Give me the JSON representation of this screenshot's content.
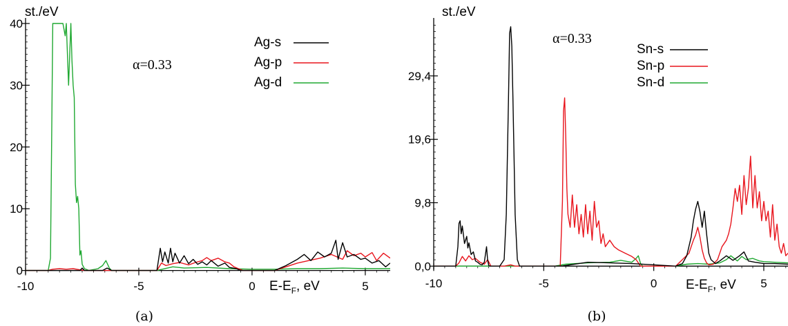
{
  "chart_data": [
    {
      "type": "line",
      "ylabel": "st./eV",
      "xlabel_main": "E-E",
      "xlabel_sub": "F",
      "xlabel_tail": ", eV",
      "annotation": "α=0.33",
      "caption": "(a)",
      "xlim": [
        -10,
        6.1
      ],
      "ylim": [
        -0.6,
        40
      ],
      "xticks": [
        -10,
        -5,
        0,
        5
      ],
      "xtick_labels": [
        "-10",
        "-5",
        "0",
        "5"
      ],
      "yticks": [
        0,
        10,
        20,
        30,
        40
      ],
      "ytick_labels": [
        "0",
        "10",
        "20",
        "30",
        "40"
      ],
      "grid": false,
      "legend_position": "top-right",
      "series": [
        {
          "name": "Ag-s",
          "color": "#000000",
          "x": [
            -10,
            -7.6,
            -7.5,
            -7.4,
            -6.6,
            -6.4,
            -6.2,
            -4.2,
            -4.05,
            -3.95,
            -3.85,
            -3.7,
            -3.6,
            -3.5,
            -3.4,
            -3.2,
            -3.0,
            -2.8,
            -2.6,
            -2.4,
            -2.2,
            -2.0,
            -1.8,
            -1.5,
            -1.2,
            -1.0,
            -0.7,
            -0.5,
            1.0,
            1.5,
            2.0,
            2.3,
            2.6,
            2.9,
            3.2,
            3.5,
            3.7,
            3.8,
            4.0,
            4.2,
            4.5,
            4.8,
            5.0,
            5.3,
            5.6,
            5.9,
            6.1
          ],
          "values": [
            0,
            0,
            0.4,
            0,
            0,
            0.4,
            0,
            0,
            3.6,
            1.4,
            3.0,
            1.2,
            3.6,
            1.4,
            2.8,
            1.2,
            2.4,
            1.1,
            1.8,
            1.0,
            1.4,
            0.9,
            1.6,
            0.7,
            1.2,
            0.5,
            0.3,
            0,
            0,
            0.8,
            1.8,
            2.6,
            1.6,
            3.0,
            2.2,
            2.8,
            4.9,
            1.8,
            4.5,
            2.2,
            2.6,
            1.8,
            2.0,
            1.2,
            1.6,
            0.6,
            1.2
          ]
        },
        {
          "name": "Ag-p",
          "color": "#e8141c",
          "x": [
            -10,
            -9.0,
            -8.8,
            -8.5,
            -8.2,
            -7.9,
            -7.6,
            -7.4,
            -4.2,
            -4.0,
            -3.8,
            -3.5,
            -3.2,
            -2.8,
            -2.5,
            -2.2,
            -2.0,
            -1.8,
            -1.5,
            -1.2,
            -1.0,
            -0.8,
            -0.6,
            -0.4,
            1.0,
            1.5,
            2.0,
            2.5,
            3.0,
            3.5,
            4.0,
            4.2,
            4.5,
            4.8,
            5.0,
            5.3,
            5.5,
            5.8,
            6.1
          ],
          "values": [
            0,
            0,
            0.2,
            0.3,
            0.2,
            0.3,
            0.1,
            0,
            0,
            1.2,
            0.8,
            1.1,
            1.3,
            0.9,
            1.3,
            1.6,
            2.1,
            1.6,
            2.0,
            1.4,
            1.2,
            0.6,
            0.3,
            0,
            0,
            0.6,
            1.2,
            1.6,
            2.0,
            2.6,
            1.8,
            3.2,
            2.4,
            2.8,
            2.2,
            2.9,
            1.6,
            2.8,
            2.0
          ]
        },
        {
          "name": "Ag-d",
          "color": "#1fa831",
          "x": [
            -10,
            -9.0,
            -8.9,
            -8.85,
            -8.8,
            -8.7,
            -8.6,
            -8.5,
            -8.35,
            -8.25,
            -8.2,
            -8.1,
            -8.0,
            -7.95,
            -7.9,
            -7.85,
            -7.8,
            -7.75,
            -7.7,
            -7.65,
            -7.6,
            -7.55,
            -7.5,
            -7.4,
            -7.2,
            -6.8,
            -6.6,
            -6.45,
            -6.3,
            -6.2,
            -4.2,
            -3.5,
            -3.0,
            -2.0,
            -1.0,
            0,
            1.0,
            2.0,
            3.0,
            4.0,
            5.0,
            6.1
          ],
          "values": [
            0,
            0,
            2,
            20,
            40,
            40,
            40,
            40,
            40,
            38,
            40,
            30,
            40,
            34,
            30,
            28,
            14,
            11,
            12,
            10,
            2.5,
            3.2,
            1.0,
            0.3,
            0,
            0.3,
            0.8,
            1.6,
            0.4,
            0,
            0,
            0.6,
            0.4,
            0.5,
            0.3,
            0.2,
            0.2,
            0.3,
            0.3,
            0.4,
            0.3,
            0.3
          ]
        }
      ]
    },
    {
      "type": "line",
      "ylabel": "st./eV",
      "xlabel_main": "E-E",
      "xlabel_sub": "F",
      "xlabel_tail": ", eV",
      "annotation": "α=0.33",
      "caption": "(b)",
      "xlim": [
        -10,
        6.1
      ],
      "ylim": [
        -0.5,
        37.5
      ],
      "xticks": [
        -10,
        -5,
        0,
        5
      ],
      "xtick_labels": [
        "-10",
        "-5",
        "0",
        "5"
      ],
      "yticks": [
        0,
        9.8,
        19.6,
        29.4
      ],
      "ytick_labels": [
        "0,0",
        "9,8",
        "19,6",
        "29,4"
      ],
      "grid": false,
      "legend_position": "top-right",
      "series": [
        {
          "name": "Sn-s",
          "color": "#000000",
          "x": [
            -10,
            -9.0,
            -8.9,
            -8.85,
            -8.8,
            -8.75,
            -8.7,
            -8.6,
            -8.5,
            -8.45,
            -8.4,
            -8.3,
            -8.2,
            -8.1,
            -8.0,
            -7.9,
            -7.8,
            -7.7,
            -7.6,
            -7.55,
            -7.5,
            -7.45,
            -7.4,
            -7.0,
            -6.8,
            -6.7,
            -6.6,
            -6.55,
            -6.5,
            -6.45,
            -6.4,
            -6.3,
            -6.2,
            -6.1,
            -4.2,
            -3.0,
            -2.0,
            -1.0,
            1.0,
            1.3,
            1.5,
            1.7,
            1.8,
            1.9,
            2.0,
            2.1,
            2.2,
            2.3,
            2.4,
            2.5,
            2.6,
            2.8,
            3.0,
            3.3,
            3.6,
            3.9,
            4.1,
            4.3,
            4.6,
            5.0,
            5.5,
            6.1
          ],
          "values": [
            0,
            0,
            3.0,
            6.6,
            7.0,
            5.0,
            6.2,
            3.5,
            4.6,
            2.8,
            3.6,
            1.8,
            2.2,
            0.8,
            0.6,
            0.3,
            0.2,
            0.6,
            3.0,
            0.9,
            0.1,
            0,
            0,
            0,
            1.0,
            8.0,
            26,
            36,
            37,
            34,
            26,
            8.0,
            1.0,
            0,
            0,
            0.6,
            0.5,
            0.4,
            0,
            0.4,
            1.6,
            4.5,
            7.0,
            8.8,
            10.0,
            8.4,
            6.0,
            8.5,
            5.0,
            2.0,
            1.0,
            0.4,
            0.8,
            1.6,
            0.9,
            1.6,
            2.2,
            0.8,
            0.6,
            0.4,
            0.4,
            0.3
          ]
        },
        {
          "name": "Sn-p",
          "color": "#e8141c",
          "x": [
            -10,
            -9.0,
            -8.85,
            -8.7,
            -8.55,
            -8.4,
            -8.25,
            -8.1,
            -7.9,
            -7.7,
            -7.55,
            -7.4,
            -6.8,
            -6.5,
            -6.3,
            -4.25,
            -4.15,
            -4.1,
            -4.05,
            -4.0,
            -3.95,
            -3.9,
            -3.8,
            -3.7,
            -3.6,
            -3.5,
            -3.4,
            -3.3,
            -3.2,
            -3.1,
            -3.0,
            -2.9,
            -2.8,
            -2.7,
            -2.6,
            -2.5,
            -2.4,
            -2.3,
            -2.2,
            -2.0,
            -1.8,
            -1.6,
            -1.3,
            -1.0,
            -0.8,
            -0.6,
            1.0,
            1.3,
            1.6,
            1.8,
            1.9,
            2.0,
            2.1,
            2.2,
            2.3,
            2.4,
            2.5,
            2.7,
            2.9,
            3.1,
            3.3,
            3.4,
            3.5,
            3.6,
            3.7,
            3.8,
            3.9,
            4.0,
            4.1,
            4.2,
            4.3,
            4.4,
            4.5,
            4.6,
            4.7,
            4.8,
            4.9,
            5.0,
            5.1,
            5.2,
            5.3,
            5.4,
            5.5,
            5.6,
            5.7,
            5.8,
            5.9,
            6.0,
            6.1
          ],
          "values": [
            0,
            0,
            0.5,
            1.5,
            0.8,
            1.6,
            1.0,
            1.2,
            0.6,
            0.3,
            1.0,
            0,
            0,
            0.2,
            0,
            0,
            10,
            24,
            26,
            20,
            12,
            8,
            6,
            11,
            6,
            9.5,
            5,
            8,
            4.5,
            9.5,
            5,
            8.5,
            4,
            10,
            6,
            7,
            3.5,
            5,
            3,
            4,
            3,
            2.5,
            2,
            1.5,
            1.0,
            0,
            0,
            1.0,
            2.0,
            4.0,
            4.8,
            6.0,
            4.5,
            2.5,
            1.2,
            0.5,
            0.2,
            0.3,
            1.0,
            3.0,
            4.0,
            5.0,
            6.5,
            9.0,
            12.0,
            10.0,
            12.5,
            8.0,
            14.0,
            9.5,
            12.0,
            17.0,
            9.0,
            14.0,
            9.0,
            11.5,
            7.0,
            10.0,
            7.0,
            8.5,
            4.5,
            9.5,
            4.0,
            6.5,
            3.0,
            2.0,
            3.5,
            1.6,
            2.0
          ]
        },
        {
          "name": "Sn-d",
          "color": "#1fa831",
          "x": [
            -10,
            -8.0,
            -6.5,
            -4.5,
            -4.0,
            -3.0,
            -2.0,
            -1.5,
            -1.0,
            -0.8,
            -0.7,
            -0.6,
            -0.5,
            0,
            1.0,
            1.5,
            2.0,
            2.5,
            3.0,
            3.3,
            3.5,
            3.8,
            4.0,
            4.2,
            4.5,
            4.8,
            5.0,
            5.5,
            6.1
          ],
          "values": [
            0,
            0,
            0,
            0,
            0.3,
            0.5,
            0.6,
            0.9,
            0.6,
            1.2,
            1.6,
            0.4,
            0,
            0,
            0,
            0.3,
            0.4,
            0.3,
            0.5,
            1.0,
            1.6,
            0.8,
            1.5,
            1.0,
            1.2,
            0.8,
            0.7,
            0.6,
            0.5
          ]
        }
      ]
    }
  ]
}
